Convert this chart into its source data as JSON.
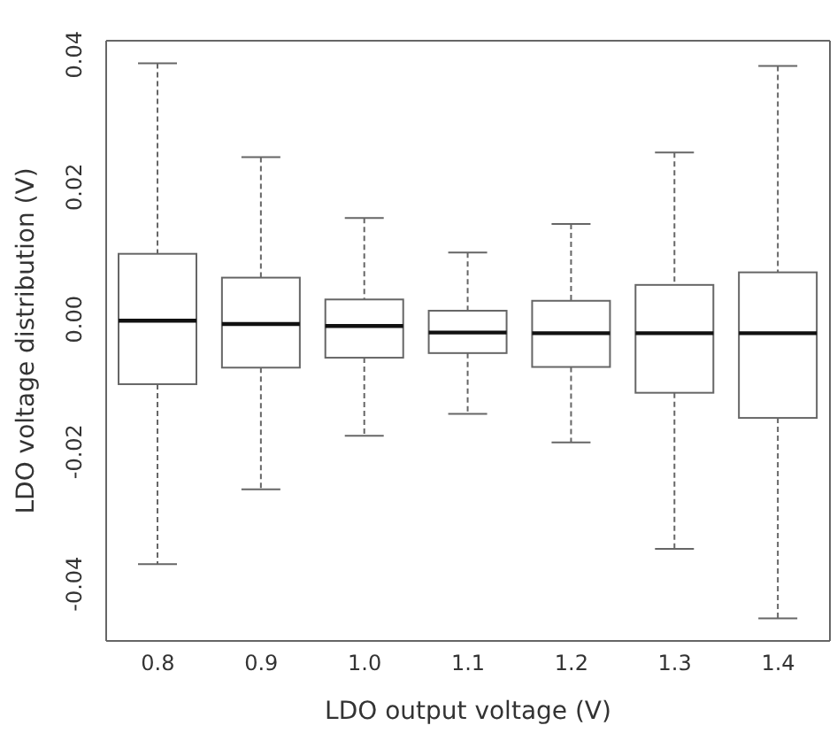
{
  "chart_data": {
    "type": "box",
    "xlabel": "LDO output voltage (V)",
    "ylabel": "LDO voltage distribution (V)",
    "categories": [
      "0.8",
      "0.9",
      "1.0",
      "1.1",
      "1.2",
      "1.3",
      "1.4"
    ],
    "boxes": [
      {
        "low": -0.037,
        "q1": -0.0098,
        "median": -0.0002,
        "q3": 0.0099,
        "high": 0.0387
      },
      {
        "low": -0.0257,
        "q1": -0.0073,
        "median": -0.0007,
        "q3": 0.0063,
        "high": 0.0245
      },
      {
        "low": -0.0176,
        "q1": -0.0058,
        "median": -0.001,
        "q3": 0.003,
        "high": 0.0153
      },
      {
        "low": -0.0143,
        "q1": -0.0051,
        "median": -0.002,
        "q3": 0.0013,
        "high": 0.0101
      },
      {
        "low": -0.0186,
        "q1": -0.0072,
        "median": -0.0021,
        "q3": 0.0028,
        "high": 0.0144
      },
      {
        "low": -0.0347,
        "q1": -0.0111,
        "median": -0.0021,
        "q3": 0.0052,
        "high": 0.0252
      },
      {
        "low": -0.0452,
        "q1": -0.0149,
        "median": -0.0021,
        "q3": 0.0071,
        "high": 0.0383
      }
    ],
    "ylim": [
      -0.0486,
      0.0421
    ],
    "yticks": [
      {
        "value": -0.04,
        "label": "-0.04"
      },
      {
        "value": -0.02,
        "label": "-0.02"
      },
      {
        "value": 0,
        "label": "0.00"
      },
      {
        "value": 0.02,
        "label": "0.02"
      },
      {
        "value": 0.04,
        "label": "0.04"
      }
    ],
    "grid": false,
    "legend": false
  }
}
